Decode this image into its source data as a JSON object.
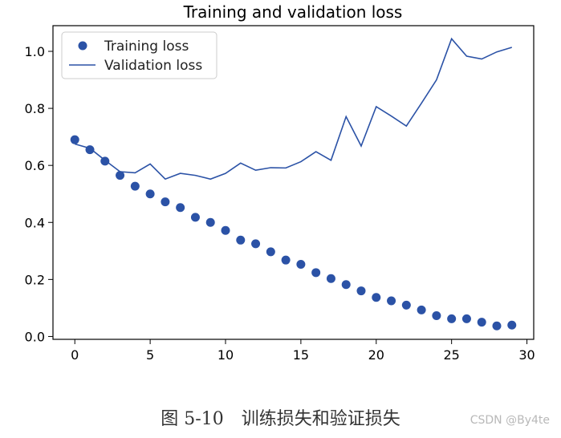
{
  "chart_data": {
    "type": "line",
    "title": "Training and validation loss",
    "xlabel": "",
    "ylabel": "",
    "xlim": [
      -1.45,
      30.45
    ],
    "ylim": [
      -0.01,
      1.09
    ],
    "x_ticks": [
      0,
      5,
      10,
      15,
      20,
      25,
      30
    ],
    "y_ticks": [
      0.0,
      0.2,
      0.4,
      0.6,
      0.8,
      1.0
    ],
    "x_tick_labels": [
      "0",
      "5",
      "10",
      "15",
      "20",
      "25",
      "30"
    ],
    "y_tick_labels": [
      "0.0",
      "0.2",
      "0.4",
      "0.6",
      "0.8",
      "1.0"
    ],
    "legend_position": "top-left",
    "grid": false,
    "x": [
      0,
      1,
      2,
      3,
      4,
      5,
      6,
      7,
      8,
      9,
      10,
      11,
      12,
      13,
      14,
      15,
      16,
      17,
      18,
      19,
      20,
      21,
      22,
      23,
      24,
      25,
      26,
      27,
      28,
      29
    ],
    "series": [
      {
        "name": "Training loss",
        "style": "markers",
        "color": "#2b52a6",
        "values": [
          0.69,
          0.655,
          0.615,
          0.565,
          0.527,
          0.5,
          0.472,
          0.452,
          0.418,
          0.4,
          0.372,
          0.338,
          0.325,
          0.297,
          0.268,
          0.253,
          0.224,
          0.203,
          0.182,
          0.16,
          0.137,
          0.125,
          0.11,
          0.093,
          0.073,
          0.062,
          0.062,
          0.05,
          0.037,
          0.04
        ]
      },
      {
        "name": "Validation loss",
        "style": "line",
        "color": "#2b52a6",
        "values": [
          0.675,
          0.66,
          0.618,
          0.578,
          0.574,
          0.605,
          0.552,
          0.572,
          0.565,
          0.552,
          0.572,
          0.608,
          0.583,
          0.592,
          0.591,
          0.613,
          0.648,
          0.618,
          0.771,
          0.668,
          0.806,
          0.773,
          0.738,
          0.818,
          0.9,
          1.044,
          0.983,
          0.973,
          0.998,
          1.014
        ]
      }
    ]
  },
  "caption": "图 5-10　训练损失和验证损失",
  "watermark": "CSDN @By4te"
}
